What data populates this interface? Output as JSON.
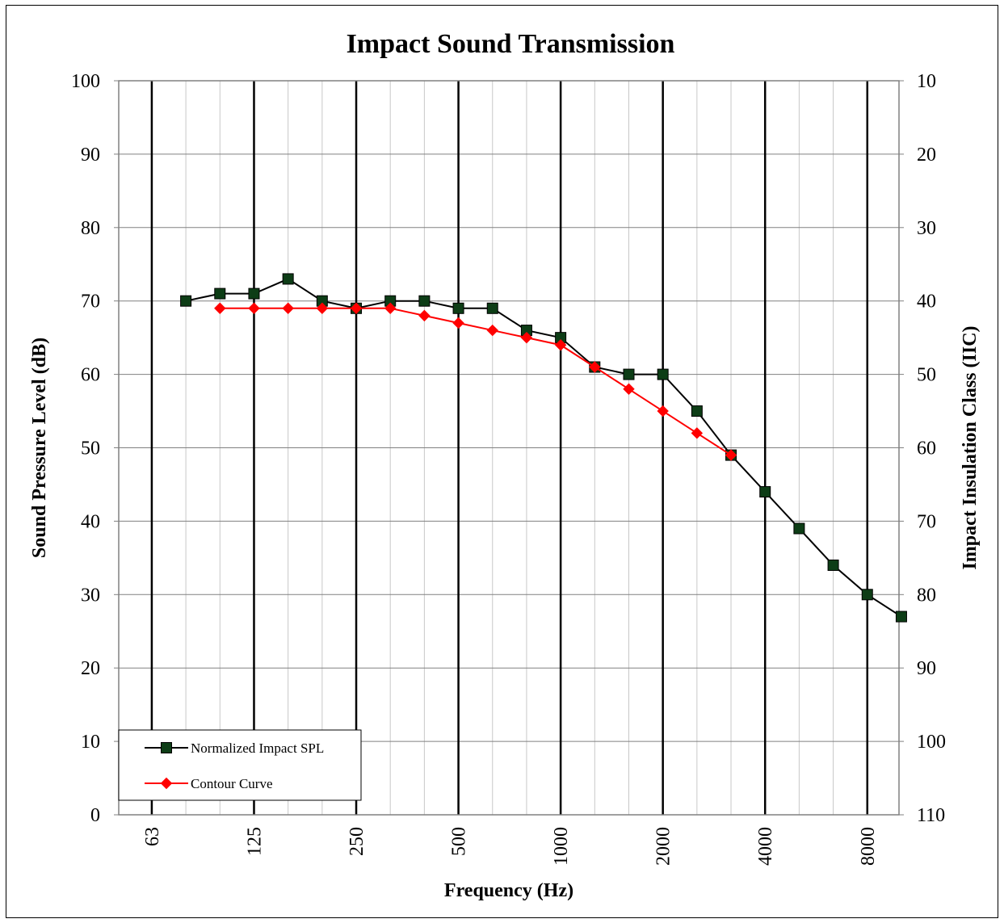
{
  "chart_data": {
    "type": "line",
    "title": "Impact Sound Transmission",
    "xlabel": "Frequency (Hz)",
    "ylabel": "Sound Pressure Level (dB)",
    "y2label": "Impact Insulation Class (IIC)",
    "x_scale": "log-third-octave",
    "x_range": [
      63,
      10000
    ],
    "ylim": [
      0,
      100
    ],
    "y_ticks": [
      0,
      10,
      20,
      30,
      40,
      50,
      60,
      70,
      80,
      90,
      100
    ],
    "y2_ticks": [
      110,
      100,
      90,
      80,
      70,
      60,
      50,
      40,
      30,
      20,
      10
    ],
    "x_tick_labels": [
      "63",
      "125",
      "250",
      "500",
      "1000",
      "2000",
      "4000",
      "8000"
    ],
    "x_ticks": [
      63,
      125,
      250,
      500,
      1000,
      2000,
      4000,
      8000
    ],
    "x_minor_ticks": [
      63,
      80,
      100,
      125,
      160,
      200,
      250,
      315,
      400,
      500,
      630,
      800,
      1000,
      1250,
      1600,
      2000,
      2500,
      3150,
      4000,
      5000,
      6300,
      8000,
      10000
    ],
    "grid": true,
    "legend_position": "bottom-left",
    "series": [
      {
        "name": "Normalized Impact SPL",
        "color": "#000000",
        "marker": "square",
        "marker_fill": "#0d3d16",
        "x": [
          80,
          100,
          125,
          160,
          200,
          250,
          315,
          400,
          500,
          630,
          800,
          1000,
          1250,
          1600,
          2000,
          2500,
          3150,
          4000,
          5000,
          6300,
          8000,
          10000
        ],
        "values": [
          70,
          71,
          71,
          73,
          70,
          69,
          70,
          70,
          69,
          69,
          66,
          65,
          61,
          60,
          60,
          55,
          49,
          44,
          39,
          34,
          30,
          27
        ]
      },
      {
        "name": "Contour Curve",
        "color": "#ff0000",
        "marker": "diamond",
        "marker_fill": "#ff0000",
        "x": [
          100,
          125,
          160,
          200,
          250,
          315,
          400,
          500,
          630,
          800,
          1000,
          1250,
          1600,
          2000,
          2500,
          3150
        ],
        "values": [
          69,
          69,
          69,
          69,
          69,
          69,
          68,
          67,
          66,
          65,
          64,
          61,
          58,
          55,
          52,
          49
        ]
      }
    ]
  }
}
